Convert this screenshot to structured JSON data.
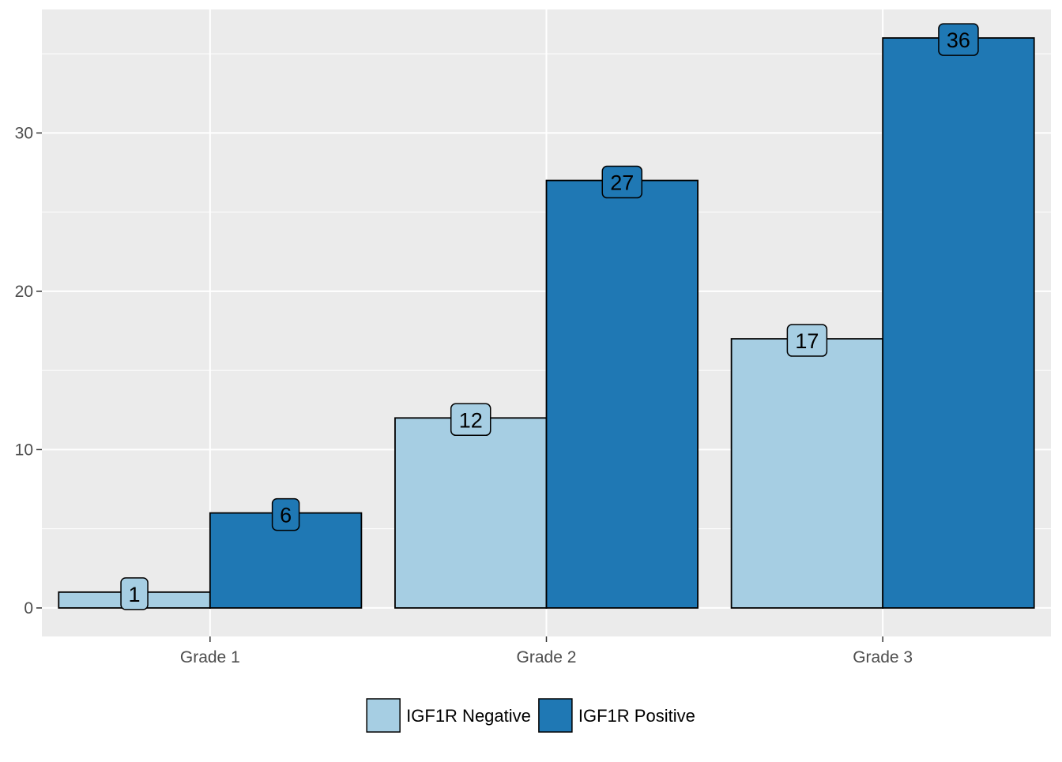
{
  "chart_data": {
    "type": "bar",
    "categories": [
      "Grade 1",
      "Grade 2",
      "Grade 3"
    ],
    "series": [
      {
        "name": "IGF1R Negative",
        "values": [
          1,
          12,
          17
        ],
        "color": "#a6cee3"
      },
      {
        "name": "IGF1R Positive",
        "values": [
          6,
          27,
          36
        ],
        "color": "#1f78b4"
      }
    ],
    "y_ticks": [
      0,
      10,
      20,
      30
    ],
    "ylim": [
      -1.8,
      37.8
    ],
    "title": "",
    "xlabel": "",
    "ylabel": "",
    "grid": true,
    "legend_position": "bottom",
    "panel_background": "#ebebeb",
    "grid_color": "#ffffff",
    "bar_outline": "#000000"
  }
}
